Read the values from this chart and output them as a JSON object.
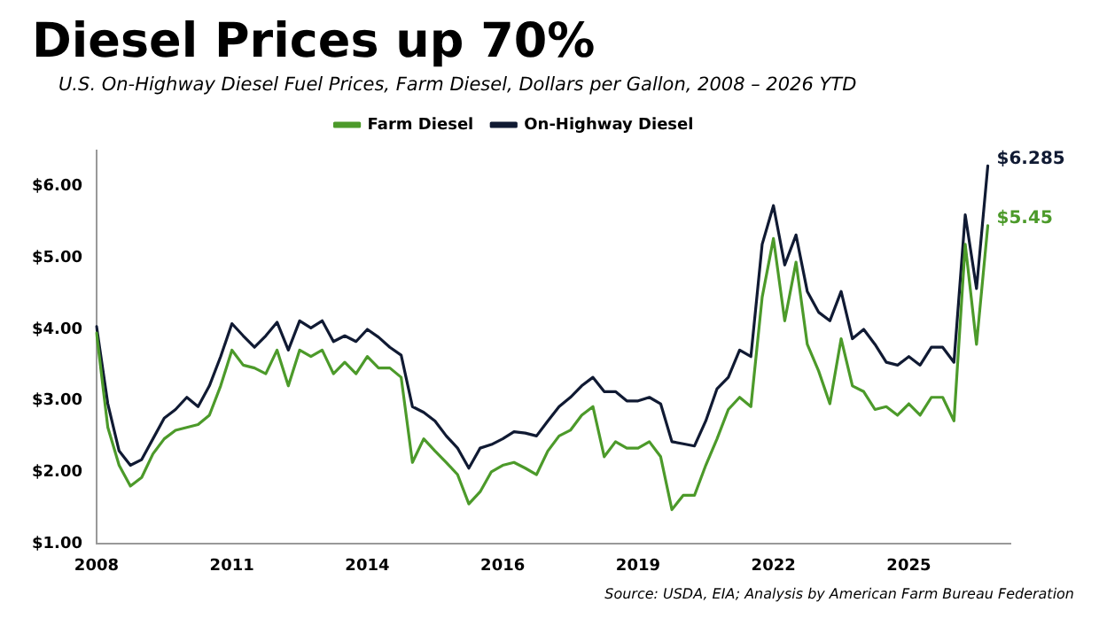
{
  "chart_data": {
    "type": "line",
    "title": "Diesel Prices up 70%",
    "subtitle": "U.S. On-Highway Diesel Fuel Prices, Farm Diesel, Dollars per Gallon, 2008 – 2026 YTD",
    "annotations": [
      "Source: USDA, EIA; Analysis by American Farm Bureau Federation"
    ],
    "categories": [
      "2008",
      null,
      null,
      null,
      null,
      null,
      null,
      null,
      null,
      null,
      null,
      null,
      "2011",
      null,
      null,
      null,
      null,
      null,
      null,
      null,
      null,
      null,
      null,
      null,
      "2014",
      null,
      null,
      null,
      null,
      null,
      null,
      null,
      null,
      null,
      null,
      null,
      "2016",
      null,
      null,
      null,
      null,
      null,
      null,
      null,
      null,
      null,
      null,
      null,
      "2019",
      null,
      null,
      null,
      null,
      null,
      null,
      null,
      null,
      null,
      null,
      null,
      "2022",
      null,
      null,
      null,
      null,
      null,
      null,
      null,
      null,
      null,
      null,
      null,
      "2025",
      null,
      null,
      null,
      null,
      null,
      null,
      null,
      null,
      null
    ],
    "series": [
      {
        "name": "Farm Diesel",
        "color": "#4c9a2a",
        "values": [
          3.95,
          2.63,
          2.1,
          1.81,
          1.93,
          2.26,
          2.47,
          2.59,
          2.63,
          2.67,
          2.8,
          3.21,
          3.71,
          3.5,
          3.46,
          3.38,
          3.71,
          3.21,
          3.71,
          3.62,
          3.71,
          3.38,
          3.54,
          3.38,
          3.62,
          3.46,
          3.46,
          3.33,
          2.14,
          2.47,
          2.3,
          2.14,
          1.97,
          1.56,
          1.73,
          2.01,
          2.1,
          2.14,
          2.06,
          1.97,
          2.3,
          2.51,
          2.59,
          2.8,
          2.92,
          2.22,
          2.43,
          2.34,
          2.34,
          2.43,
          2.22,
          1.48,
          1.68,
          1.68,
          2.1,
          2.47,
          2.88,
          3.05,
          2.92,
          4.45,
          5.27,
          4.12,
          4.94,
          3.79,
          3.42,
          2.96,
          3.87,
          3.21,
          3.13,
          2.88,
          2.92,
          2.8,
          2.96,
          2.8,
          3.05,
          3.05,
          2.72,
          5.19,
          3.79,
          5.45,
          null,
          null
        ],
        "value_labels": [
          null,
          null,
          null,
          null,
          null,
          null,
          null,
          null,
          null,
          null,
          null,
          null,
          null,
          null,
          null,
          null,
          null,
          null,
          null,
          null,
          null,
          null,
          null,
          null,
          null,
          null,
          null,
          null,
          null,
          null,
          null,
          null,
          null,
          null,
          null,
          null,
          null,
          null,
          null,
          null,
          null,
          null,
          null,
          null,
          null,
          null,
          null,
          null,
          null,
          null,
          null,
          null,
          null,
          null,
          null,
          null,
          null,
          null,
          null,
          null,
          null,
          null,
          null,
          null,
          null,
          null,
          null,
          null,
          null,
          null,
          null,
          null,
          null,
          null,
          null,
          null,
          null,
          null,
          null,
          "$5.45",
          null,
          null
        ]
      },
      {
        "name": "On-Highway Diesel",
        "color": "#101a33",
        "values": [
          4.04,
          2.96,
          2.3,
          2.1,
          2.18,
          2.47,
          2.76,
          2.88,
          3.05,
          2.92,
          3.21,
          3.62,
          4.08,
          3.91,
          3.75,
          3.91,
          4.1,
          3.71,
          4.12,
          4.02,
          4.12,
          3.83,
          3.91,
          3.83,
          4.0,
          3.89,
          3.75,
          3.64,
          2.92,
          2.84,
          2.72,
          2.51,
          2.34,
          2.06,
          2.34,
          2.39,
          2.47,
          2.57,
          2.55,
          2.51,
          2.72,
          2.92,
          3.05,
          3.21,
          3.33,
          3.13,
          3.13,
          3.0,
          3.0,
          3.05,
          2.96,
          2.43,
          2.4,
          2.37,
          2.72,
          3.17,
          3.33,
          3.71,
          3.62,
          5.19,
          5.73,
          4.9,
          5.32,
          4.53,
          4.24,
          4.12,
          4.53,
          3.87,
          4.0,
          3.79,
          3.54,
          3.5,
          3.62,
          3.5,
          3.75,
          3.75,
          3.54,
          5.6,
          4.57,
          6.285,
          null,
          null
        ],
        "value_labels": [
          null,
          null,
          null,
          null,
          null,
          null,
          null,
          null,
          null,
          null,
          null,
          null,
          null,
          null,
          null,
          null,
          null,
          null,
          null,
          null,
          null,
          null,
          null,
          null,
          null,
          null,
          null,
          null,
          null,
          null,
          null,
          null,
          null,
          null,
          null,
          null,
          null,
          null,
          null,
          null,
          null,
          null,
          null,
          null,
          null,
          null,
          null,
          null,
          null,
          null,
          null,
          null,
          null,
          null,
          null,
          null,
          null,
          null,
          null,
          null,
          null,
          null,
          null,
          null,
          null,
          null,
          null,
          null,
          null,
          null,
          null,
          null,
          null,
          null,
          null,
          null,
          null,
          null,
          null,
          "$6.285",
          null,
          null
        ]
      }
    ],
    "ylim": [
      1,
      6.5
    ],
    "yticks": [
      {
        "value": 1,
        "label": "$1.00"
      },
      {
        "value": 2,
        "label": "$2.00"
      },
      {
        "value": 3,
        "label": "$3.00"
      },
      {
        "value": 4,
        "label": "$4.00"
      },
      {
        "value": 5,
        "label": "$5.00"
      },
      {
        "value": 6,
        "label": "$6.00"
      }
    ],
    "grid": false,
    "legend": "top",
    "marker": "none",
    "line_style": "solid"
  }
}
